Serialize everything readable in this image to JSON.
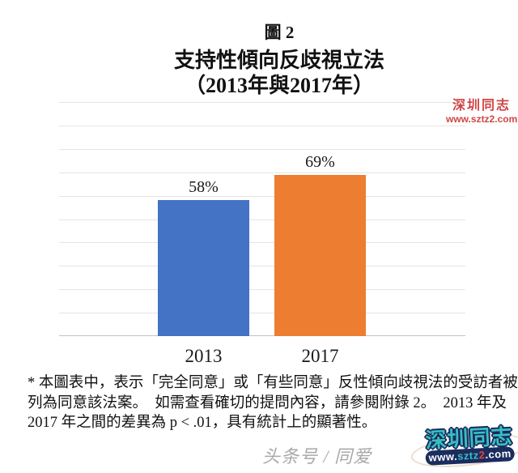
{
  "title": {
    "line1": "圖 2",
    "line2": "支持性傾向反歧視立法",
    "line3": "（2013年與2017年）"
  },
  "chart_data": {
    "type": "bar",
    "title": "支持性傾向反歧視立法（2013年與2017年）",
    "categories": [
      "2013",
      "2017"
    ],
    "values": [
      58,
      69
    ],
    "value_labels": [
      "58%",
      "69%"
    ],
    "series_colors": [
      "#4472C4",
      "#ED7D31"
    ],
    "xlabel": "",
    "ylabel": "",
    "ylim": [
      0,
      100
    ],
    "gridlines": "horizontal every 10%, light gray, no y tick labels",
    "legend": "none"
  },
  "footnote": {
    "lines": [
      "* 本圖表中，表示「完全同意」或「有些同意」反性傾向歧視法的受訪者被",
      "列為同意該法案。　如需查看確切的提問內容，請參閱附錄 2。　2013 年及",
      "2017 年之間的差異為 p < .01，具有統計上的顯著性。"
    ]
  },
  "caption": {
    "text": "头条号 / 同爱"
  },
  "watermark_top": {
    "name": "深圳同志",
    "url": "www.sztz2.com",
    "color": "#d04545"
  },
  "watermark_bottom": {
    "name": "深圳同志",
    "url_www": "www.",
    "url_sztz": "sztz",
    "url_2": "2",
    "url_com": ".com",
    "teal": "#38bfc1",
    "navy": "#1b2c5e",
    "red": "#e8423a",
    "white": "#ffffff"
  }
}
